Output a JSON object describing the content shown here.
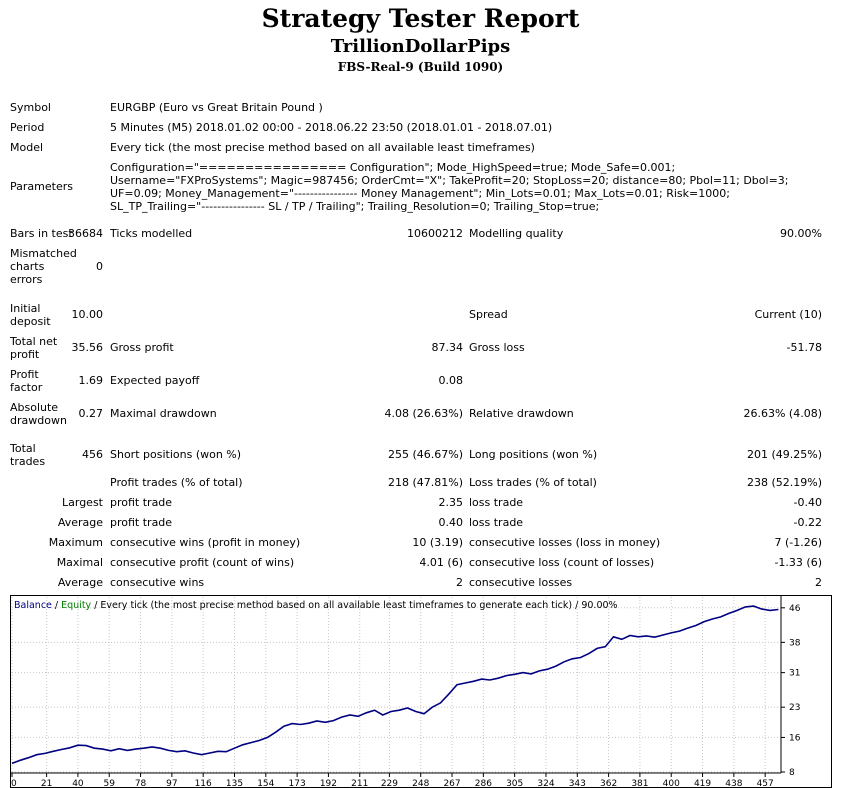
{
  "header": {
    "title": "Strategy Tester Report",
    "expert": "TrillionDollarPips",
    "server": "FBS-Real-9 (Build 1090)"
  },
  "settings": {
    "symbol_label": "Symbol",
    "symbol_value": "EURGBP (Euro vs Great Britain Pound )",
    "period_label": "Period",
    "period_value": "5 Minutes (M5) 2018.01.02 00:00 - 2018.06.22 23:50 (2018.01.01 - 2018.07.01)",
    "model_label": "Model",
    "model_value": "Every tick (the most precise method based on all available least timeframes)",
    "parameters_label": "Parameters",
    "parameters_value": "Configuration=\"================ Configuration\"; Mode_HighSpeed=true; Mode_Safe=0.001; Username=\"FXProSystems\"; Magic=987456; OrderCmt=\"X\"; TakeProfit=20; StopLoss=20; distance=80; Pbol=11; Dbol=3; UF=0.09; Money_Management=\"---------------- Money Management\"; Min_Lots=0.01; Max_Lots=0.01; Risk=1000; SL_TP_Trailing=\"---------------- SL / TP / Trailing\"; Trailing_Resolution=0; Trailing_Stop=true;"
  },
  "stats": {
    "bars_label": "Bars in test",
    "bars_value": "36684",
    "ticks_label": "Ticks modelled",
    "ticks_value": "10600212",
    "quality_label": "Modelling quality",
    "quality_value": "90.00%",
    "mismatch_label": "Mismatched charts errors",
    "mismatch_value": "0",
    "deposit_label": "Initial deposit",
    "deposit_value": "10.00",
    "spread_label": "Spread",
    "spread_value": "Current (10)",
    "net_label": "Total net profit",
    "net_value": "35.56",
    "gross_profit_label": "Gross profit",
    "gross_profit_value": "87.34",
    "gross_loss_label": "Gross loss",
    "gross_loss_value": "-51.78",
    "pf_label": "Profit factor",
    "pf_value": "1.69",
    "payoff_label": "Expected payoff",
    "payoff_value": "0.08",
    "abs_dd_label": "Absolute drawdown",
    "abs_dd_value": "0.27",
    "max_dd_label": "Maximal drawdown",
    "max_dd_value": "4.08 (26.63%)",
    "rel_dd_label": "Relative drawdown",
    "rel_dd_value": "26.63% (4.08)",
    "trades_label": "Total trades",
    "trades_value": "456",
    "short_label": "Short positions (won %)",
    "short_value": "255 (46.67%)",
    "long_label": "Long positions (won %)",
    "long_value": "201 (49.25%)",
    "profit_trades_label": "Profit trades (% of total)",
    "profit_trades_value": "218 (47.81%)",
    "loss_trades_label": "Loss trades (% of total)",
    "loss_trades_value": "238 (52.19%)",
    "largest_label": "Largest",
    "largest_profit_label": "profit trade",
    "largest_profit_value": "2.35",
    "largest_loss_label": "loss trade",
    "largest_loss_value": "-0.40",
    "average_label": "Average",
    "avg_profit_label": "profit trade",
    "avg_profit_value": "0.40",
    "avg_loss_label": "loss trade",
    "avg_loss_value": "-0.22",
    "maximum_label": "Maximum",
    "max_wins_label": "consecutive wins (profit in money)",
    "max_wins_value": "10 (3.19)",
    "max_losses_label": "consecutive losses (loss in money)",
    "max_losses_value": "7 (-1.26)",
    "maximal_label": "Maximal",
    "maximal_profit_label": "consecutive profit (count of wins)",
    "maximal_profit_value": "4.01 (6)",
    "maximal_loss_label": "consecutive loss (count of losses)",
    "maximal_loss_value": "-1.33 (6)",
    "average2_label": "Average",
    "avg_wins_label": "consecutive wins",
    "avg_wins_value": "2",
    "avg_losses_label": "consecutive losses",
    "avg_losses_value": "2"
  },
  "chart_data": {
    "type": "line",
    "legend": {
      "balance": "Balance",
      "sep1": " / ",
      "equity": "Equity",
      "rest": " / Every tick (the most precise method based on all available least timeframes to generate each tick) / 90.00%"
    },
    "colors": {
      "balance": "#000080",
      "equity": "#008000",
      "grid": "#c8c8c8",
      "border": "#000000"
    },
    "xlim": [
      0,
      466
    ],
    "ylim": [
      8,
      48.5
    ],
    "x_ticks": [
      0,
      21,
      40,
      59,
      78,
      97,
      116,
      135,
      154,
      173,
      192,
      211,
      229,
      248,
      267,
      286,
      305,
      324,
      343,
      362,
      381,
      400,
      419,
      438,
      457
    ],
    "y_ticks": [
      8,
      16,
      23,
      31,
      38,
      46
    ],
    "series": [
      {
        "name": "Balance",
        "x": [
          0,
          5,
          10,
          15,
          20,
          25,
          30,
          35,
          40,
          45,
          50,
          55,
          60,
          65,
          70,
          75,
          80,
          85,
          90,
          95,
          100,
          105,
          110,
          115,
          120,
          125,
          130,
          135,
          140,
          145,
          150,
          155,
          160,
          165,
          170,
          175,
          180,
          185,
          190,
          195,
          200,
          205,
          210,
          215,
          220,
          225,
          230,
          235,
          240,
          245,
          250,
          255,
          260,
          265,
          270,
          275,
          280,
          285,
          290,
          295,
          300,
          305,
          310,
          315,
          320,
          325,
          330,
          335,
          340,
          345,
          350,
          355,
          360,
          365,
          370,
          375,
          380,
          385,
          390,
          395,
          400,
          405,
          410,
          415,
          420,
          425,
          430,
          435,
          440,
          445,
          450,
          455,
          460,
          465
        ],
        "values": [
          10.0,
          10.7,
          11.3,
          12.0,
          12.3,
          12.8,
          13.2,
          13.6,
          14.2,
          14.1,
          13.5,
          13.3,
          12.9,
          13.4,
          13.0,
          13.3,
          13.5,
          13.8,
          13.5,
          13.0,
          12.7,
          12.9,
          12.4,
          12.0,
          12.4,
          12.8,
          12.7,
          13.5,
          14.3,
          14.8,
          15.3,
          16.0,
          17.2,
          18.6,
          19.2,
          19.0,
          19.3,
          19.8,
          19.5,
          19.9,
          20.7,
          21.2,
          20.9,
          21.7,
          22.3,
          21.2,
          22.0,
          22.3,
          22.8,
          22.0,
          21.5,
          23.0,
          24.0,
          26.0,
          28.2,
          28.6,
          29.0,
          29.5,
          29.3,
          29.7,
          30.3,
          30.6,
          31.0,
          30.7,
          31.4,
          31.8,
          32.5,
          33.5,
          34.2,
          34.5,
          35.4,
          36.6,
          37.0,
          39.3,
          38.7,
          39.6,
          39.3,
          39.5,
          39.2,
          39.7,
          40.2,
          40.6,
          41.3,
          41.9,
          42.8,
          43.4,
          43.9,
          44.7,
          45.4,
          46.2,
          46.4,
          45.7,
          45.4,
          45.6
        ]
      }
    ]
  }
}
